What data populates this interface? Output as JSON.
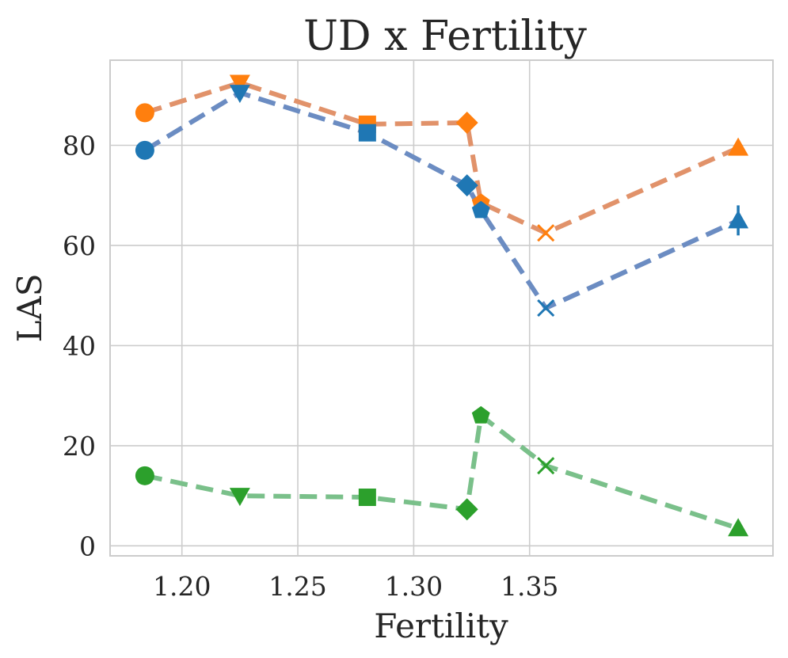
{
  "chart_data": {
    "type": "line",
    "title": "UD x Fertility",
    "xlabel": "Fertility",
    "ylabel": "LAS",
    "xlim": [
      1.169,
      1.455
    ],
    "ylim": [
      -2,
      97
    ],
    "xticks": [
      1.2,
      1.25,
      1.3,
      1.35
    ],
    "xtick_labels": [
      "1.20",
      "1.25",
      "1.30",
      "1.35"
    ],
    "yticks": [
      0,
      20,
      40,
      60,
      80
    ],
    "ytick_labels": [
      "0",
      "20",
      "40",
      "60",
      "80"
    ],
    "grid": true,
    "legend": "none",
    "x": [
      1.184,
      1.225,
      1.28,
      1.323,
      1.329,
      1.357,
      1.44
    ],
    "markers": [
      "circle",
      "triangle-down",
      "square",
      "diamond",
      "pentagon",
      "x",
      "triangle-up"
    ],
    "series": [
      {
        "name": "orange",
        "color": "#ff7f0e",
        "line_color": "#e1926a",
        "values": [
          86.5,
          92.5,
          84.2,
          84.5,
          68.5,
          62.5,
          79.5
        ]
      },
      {
        "name": "blue",
        "color": "#1f77b4",
        "line_color": "#6b8cc2",
        "values": [
          79.0,
          90.5,
          82.5,
          72.0,
          67.0,
          47.5,
          65.0
        ],
        "error_bars": [
          0,
          0,
          0,
          0,
          0,
          0,
          3
        ]
      },
      {
        "name": "green",
        "color": "#2ca02c",
        "line_color": "#7ac08a",
        "values": [
          14.0,
          10.0,
          9.7,
          7.3,
          26.0,
          16.0,
          3.5
        ]
      }
    ]
  }
}
